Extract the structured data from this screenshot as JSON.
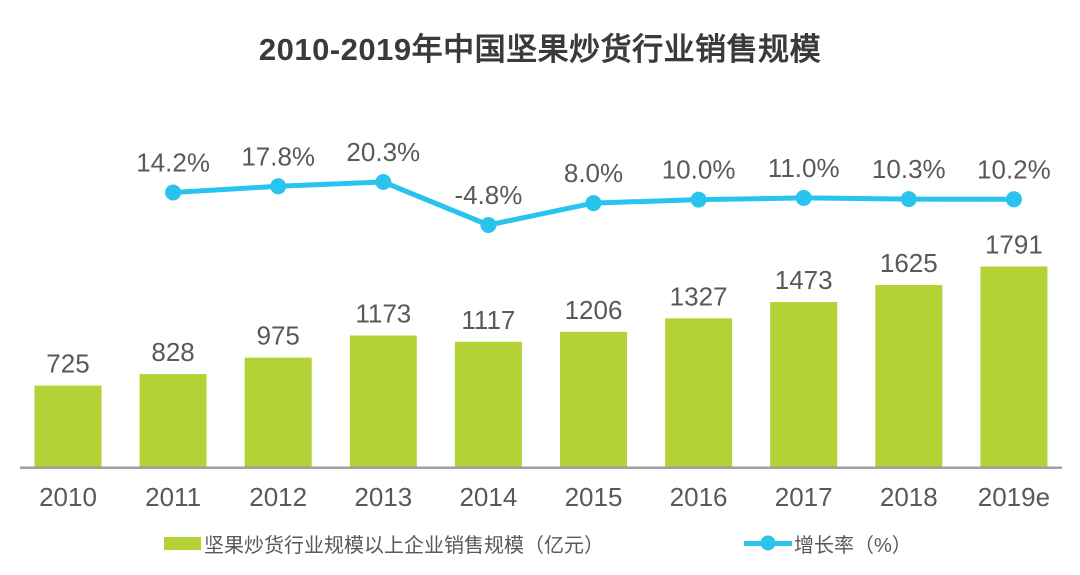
{
  "title": "2010-2019年中国坚果炒货行业销售规模",
  "legend": {
    "bar_label": "坚果炒货行业规模以上企业销售规模（亿元）",
    "line_label": "增长率（%）"
  },
  "colors": {
    "bar": "#b2d235",
    "line": "#29c3ee",
    "label": "#595959",
    "title": "#3a3a3a",
    "axis": "#9d9d9d"
  },
  "chart_data": {
    "type": "bar",
    "subtype": "bar-line-combo",
    "title": "2010-2019年中国坚果炒货行业销售规模",
    "categories": [
      "2010",
      "2011",
      "2012",
      "2013",
      "2014",
      "2015",
      "2016",
      "2017",
      "2018",
      "2019e"
    ],
    "series": [
      {
        "name": "坚果炒货行业规模以上企业销售规模（亿元）",
        "type": "bar",
        "color": "#b2d235",
        "values": [
          725,
          828,
          975,
          1173,
          1117,
          1206,
          1327,
          1473,
          1625,
          1791
        ]
      },
      {
        "name": "增长率（%）",
        "type": "line",
        "color": "#29c3ee",
        "values": [
          null,
          14.2,
          17.8,
          20.3,
          -4.8,
          8.0,
          10.0,
          11.0,
          10.3,
          10.2
        ],
        "value_labels": [
          "",
          "14.2%",
          "17.8%",
          "20.3%",
          "-4.8%",
          "8.0%",
          "10.0%",
          "11.0%",
          "10.3%",
          "10.2%"
        ]
      }
    ],
    "xlabel": "",
    "ylabel": "",
    "bar_axis_min": 0,
    "grid": false,
    "data_labels": true,
    "legend_position": "bottom"
  }
}
